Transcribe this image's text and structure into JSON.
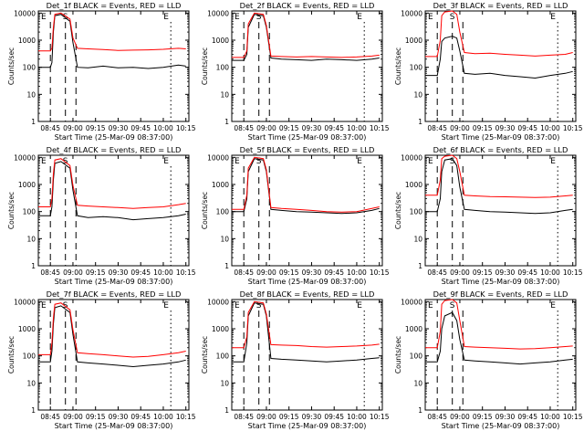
{
  "chart_data": [
    {
      "type": "line",
      "title": "Det_1f BLACK = Events, RED = LLD",
      "xlabel": "Start Time (25-Mar-09 08:37:00)",
      "ylabel": "Counts/sec",
      "yscale": "log",
      "ylim": [
        1,
        12000
      ],
      "xlim": [
        "08:37",
        "10:17"
      ],
      "x_ticks": [
        "08:45",
        "09:00",
        "09:15",
        "09:30",
        "09:45",
        "10:00",
        "10:15"
      ],
      "y_ticks": [
        "1",
        "10",
        "100",
        "1000",
        "10000"
      ],
      "marker_labels": [
        "E",
        "S",
        "E"
      ],
      "series": [
        {
          "name": "Events",
          "color": "#000000",
          "x": [
            "08:37",
            "08:45",
            "08:46",
            "08:47",
            "08:48",
            "08:52",
            "08:58",
            "09:00",
            "09:03",
            "09:10",
            "09:20",
            "09:30",
            "09:40",
            "09:50",
            "10:00",
            "10:10",
            "10:15"
          ],
          "y": [
            100,
            100,
            150,
            2000,
            8000,
            9000,
            5000,
            800,
            100,
            95,
            110,
            95,
            100,
            90,
            100,
            120,
            110
          ]
        },
        {
          "name": "LLD",
          "color": "#ff0000",
          "x": [
            "08:37",
            "08:45",
            "08:46",
            "08:47",
            "08:48",
            "08:52",
            "08:58",
            "09:00",
            "09:03",
            "09:10",
            "09:20",
            "09:30",
            "09:40",
            "09:50",
            "10:00",
            "10:10",
            "10:15"
          ],
          "y": [
            400,
            400,
            500,
            3000,
            9000,
            10000,
            6000,
            1200,
            500,
            480,
            450,
            420,
            430,
            440,
            460,
            500,
            480
          ]
        }
      ]
    },
    {
      "type": "line",
      "title": "Det_2f BLACK = Events, RED = LLD",
      "xlabel": "Start Time (25-Mar-09 08:37:00)",
      "ylabel": "Counts/sec",
      "yscale": "log",
      "ylim": [
        1,
        12000
      ],
      "xlim": [
        "08:37",
        "10:17"
      ],
      "x_ticks": [
        "08:45",
        "09:00",
        "09:15",
        "09:30",
        "09:45",
        "10:00",
        "10:15"
      ],
      "y_ticks": [
        "1",
        "10",
        "100",
        "1000",
        "10000"
      ],
      "marker_labels": [
        "E",
        "S",
        "E"
      ],
      "series": [
        {
          "name": "Events",
          "color": "#000000",
          "x": [
            "08:37",
            "08:45",
            "08:47",
            "08:48",
            "08:52",
            "08:58",
            "09:00",
            "09:03",
            "09:10",
            "09:20",
            "09:30",
            "09:40",
            "09:50",
            "10:00",
            "10:10",
            "10:15"
          ],
          "y": [
            180,
            180,
            300,
            3000,
            9000,
            8000,
            3000,
            220,
            200,
            190,
            180,
            200,
            190,
            180,
            200,
            220
          ]
        },
        {
          "name": "LLD",
          "color": "#ff0000",
          "x": [
            "08:37",
            "08:45",
            "08:47",
            "08:48",
            "08:52",
            "08:58",
            "09:00",
            "09:03",
            "09:10",
            "09:20",
            "09:30",
            "09:40",
            "09:50",
            "10:00",
            "10:10",
            "10:15"
          ],
          "y": [
            230,
            230,
            400,
            4000,
            10000,
            9000,
            3500,
            260,
            250,
            240,
            250,
            240,
            230,
            240,
            260,
            280
          ]
        }
      ]
    },
    {
      "type": "line",
      "title": "Det_3f BLACK = Events, RED = LLD",
      "xlabel": "Start Time (25-Mar-09 08:37:00)",
      "ylabel": "Counts/sec",
      "yscale": "log",
      "ylim": [
        1,
        12000
      ],
      "xlim": [
        "08:37",
        "10:17"
      ],
      "x_ticks": [
        "08:45",
        "09:00",
        "09:15",
        "09:30",
        "09:45",
        "10:00",
        "10:15"
      ],
      "y_ticks": [
        "1",
        "10",
        "100",
        "1000",
        "10000"
      ],
      "marker_labels": [
        "E",
        "S",
        "E"
      ],
      "series": [
        {
          "name": "Events",
          "color": "#000000",
          "x": [
            "08:37",
            "08:45",
            "08:47",
            "08:48",
            "08:50",
            "08:55",
            "08:58",
            "09:00",
            "09:03",
            "09:10",
            "09:20",
            "09:30",
            "09:40",
            "09:50",
            "10:00",
            "10:10",
            "10:15"
          ],
          "y": [
            50,
            50,
            200,
            900,
            1200,
            1400,
            1200,
            400,
            60,
            55,
            60,
            50,
            45,
            40,
            50,
            60,
            70
          ]
        },
        {
          "name": "LLD",
          "color": "#ff0000",
          "x": [
            "08:37",
            "08:45",
            "08:47",
            "08:48",
            "08:50",
            "08:55",
            "08:58",
            "09:00",
            "09:03",
            "09:10",
            "09:20",
            "09:30",
            "09:40",
            "09:50",
            "10:00",
            "10:10",
            "10:15"
          ],
          "y": [
            250,
            250,
            1000,
            8000,
            11000,
            12000,
            9000,
            2000,
            350,
            320,
            330,
            300,
            280,
            260,
            280,
            300,
            350
          ]
        }
      ]
    },
    {
      "type": "line",
      "title": "Det_4f BLACK = Events, RED = LLD",
      "xlabel": "Start Time (25-Mar-09 08:37:00)",
      "ylabel": "Counts/sec",
      "yscale": "log",
      "ylim": [
        1,
        12000
      ],
      "xlim": [
        "08:37",
        "10:17"
      ],
      "x_ticks": [
        "08:45",
        "09:00",
        "09:15",
        "09:30",
        "09:45",
        "10:00",
        "10:15"
      ],
      "y_ticks": [
        "1",
        "10",
        "100",
        "1000",
        "10000"
      ],
      "marker_labels": [
        "E",
        "S",
        "E"
      ],
      "series": [
        {
          "name": "Events",
          "color": "#000000",
          "x": [
            "08:37",
            "08:45",
            "08:46",
            "08:47",
            "08:48",
            "08:52",
            "08:58",
            "09:00",
            "09:03",
            "09:10",
            "09:20",
            "09:30",
            "09:40",
            "09:50",
            "10:00",
            "10:10",
            "10:15"
          ],
          "y": [
            70,
            70,
            150,
            1500,
            6000,
            7000,
            4000,
            600,
            70,
            60,
            65,
            60,
            50,
            55,
            60,
            70,
            80
          ]
        },
        {
          "name": "LLD",
          "color": "#ff0000",
          "x": [
            "08:37",
            "08:45",
            "08:46",
            "08:47",
            "08:48",
            "08:52",
            "08:58",
            "09:00",
            "09:03",
            "09:10",
            "09:20",
            "09:30",
            "09:40",
            "09:50",
            "10:00",
            "10:10",
            "10:15"
          ],
          "y": [
            150,
            150,
            300,
            2500,
            8000,
            9000,
            5000,
            900,
            170,
            160,
            150,
            140,
            130,
            140,
            150,
            180,
            200
          ]
        }
      ]
    },
    {
      "type": "line",
      "title": "Det_5f BLACK = Events, RED = LLD",
      "xlabel": "Start Time (25-Mar-09 08:37:00)",
      "ylabel": "Counts/sec",
      "yscale": "log",
      "ylim": [
        1,
        12000
      ],
      "xlim": [
        "08:37",
        "10:17"
      ],
      "x_ticks": [
        "08:45",
        "09:00",
        "09:15",
        "09:30",
        "09:45",
        "10:00",
        "10:15"
      ],
      "y_ticks": [
        "1",
        "10",
        "100",
        "1000",
        "10000"
      ],
      "marker_labels": [
        "E",
        "S",
        "E"
      ],
      "series": [
        {
          "name": "Events",
          "color": "#000000",
          "x": [
            "08:37",
            "08:45",
            "08:47",
            "08:48",
            "08:52",
            "08:58",
            "09:00",
            "09:03",
            "09:10",
            "09:20",
            "09:30",
            "09:40",
            "09:50",
            "10:00",
            "10:10",
            "10:15"
          ],
          "y": [
            100,
            100,
            300,
            3000,
            9000,
            8000,
            3000,
            120,
            110,
            100,
            95,
            90,
            85,
            90,
            110,
            130
          ]
        },
        {
          "name": "LLD",
          "color": "#ff0000",
          "x": [
            "08:37",
            "08:45",
            "08:47",
            "08:48",
            "08:52",
            "08:58",
            "09:00",
            "09:03",
            "09:10",
            "09:20",
            "09:30",
            "09:40",
            "09:50",
            "10:00",
            "10:10",
            "10:15"
          ],
          "y": [
            120,
            120,
            400,
            4000,
            10000,
            9000,
            3500,
            140,
            130,
            120,
            110,
            100,
            95,
            100,
            130,
            150
          ]
        }
      ]
    },
    {
      "type": "line",
      "title": "Det_6f BLACK = Events, RED = LLD",
      "xlabel": "Start Time (25-Mar-09 08:37:00)",
      "ylabel": "Counts/sec",
      "yscale": "log",
      "ylim": [
        1,
        12000
      ],
      "xlim": [
        "08:37",
        "10:17"
      ],
      "x_ticks": [
        "08:45",
        "09:00",
        "09:15",
        "09:30",
        "09:45",
        "10:00",
        "10:15"
      ],
      "y_ticks": [
        "1",
        "10",
        "100",
        "1000",
        "10000"
      ],
      "marker_labels": [
        "E",
        "S",
        "E"
      ],
      "series": [
        {
          "name": "Events",
          "color": "#000000",
          "x": [
            "08:37",
            "08:45",
            "08:47",
            "08:48",
            "08:50",
            "08:55",
            "08:58",
            "09:00",
            "09:03",
            "09:10",
            "09:20",
            "09:30",
            "09:40",
            "09:50",
            "10:00",
            "10:10",
            "10:15"
          ],
          "y": [
            100,
            100,
            300,
            3000,
            8000,
            9000,
            5000,
            800,
            120,
            110,
            100,
            95,
            90,
            85,
            90,
            110,
            120
          ]
        },
        {
          "name": "LLD",
          "color": "#ff0000",
          "x": [
            "08:37",
            "08:45",
            "08:47",
            "08:48",
            "08:50",
            "08:55",
            "08:58",
            "09:00",
            "09:03",
            "09:10",
            "09:20",
            "09:30",
            "09:40",
            "09:50",
            "10:00",
            "10:10",
            "10:15"
          ],
          "y": [
            400,
            400,
            1500,
            9000,
            11000,
            12000,
            9000,
            3000,
            400,
            380,
            360,
            350,
            340,
            330,
            340,
            380,
            400
          ]
        }
      ]
    },
    {
      "type": "line",
      "title": "Det_7f BLACK = Events, RED = LLD",
      "xlabel": "Start Time (25-Mar-09 08:37:00)",
      "ylabel": "Counts/sec",
      "yscale": "log",
      "ylim": [
        1,
        12000
      ],
      "xlim": [
        "08:37",
        "10:17"
      ],
      "x_ticks": [
        "08:45",
        "09:00",
        "09:15",
        "09:30",
        "09:45",
        "10:00",
        "10:15"
      ],
      "y_ticks": [
        "1",
        "10",
        "100",
        "1000",
        "10000"
      ],
      "marker_labels": [
        "E",
        "S",
        "E"
      ],
      "series": [
        {
          "name": "Events",
          "color": "#000000",
          "x": [
            "08:37",
            "08:45",
            "08:46",
            "08:47",
            "08:48",
            "08:52",
            "08:58",
            "09:00",
            "09:03",
            "09:10",
            "09:20",
            "09:30",
            "09:40",
            "09:50",
            "10:00",
            "10:10",
            "10:15"
          ],
          "y": [
            60,
            60,
            150,
            1500,
            6000,
            7000,
            4000,
            600,
            60,
            55,
            50,
            45,
            40,
            45,
            50,
            60,
            70
          ]
        },
        {
          "name": "LLD",
          "color": "#ff0000",
          "x": [
            "08:37",
            "08:45",
            "08:46",
            "08:47",
            "08:48",
            "08:52",
            "08:58",
            "09:00",
            "09:03",
            "09:10",
            "09:20",
            "09:30",
            "09:40",
            "09:50",
            "10:00",
            "10:10",
            "10:15"
          ],
          "y": [
            110,
            110,
            300,
            2500,
            8000,
            9000,
            5000,
            900,
            130,
            120,
            110,
            100,
            90,
            95,
            110,
            130,
            150
          ]
        }
      ]
    },
    {
      "type": "line",
      "title": "Det_8f BLACK = Events, RED = LLD",
      "xlabel": "Start Time (25-Mar-09 08:37:00)",
      "ylabel": "Counts/sec",
      "yscale": "log",
      "ylim": [
        1,
        12000
      ],
      "xlim": [
        "08:37",
        "10:17"
      ],
      "x_ticks": [
        "08:45",
        "09:00",
        "09:15",
        "09:30",
        "09:45",
        "10:00",
        "10:15"
      ],
      "y_ticks": [
        "1",
        "10",
        "100",
        "1000",
        "10000"
      ],
      "marker_labels": [
        "E",
        "S",
        "E"
      ],
      "series": [
        {
          "name": "Events",
          "color": "#000000",
          "x": [
            "08:37",
            "08:45",
            "08:47",
            "08:48",
            "08:52",
            "08:58",
            "09:00",
            "09:03",
            "09:10",
            "09:20",
            "09:30",
            "09:40",
            "09:50",
            "10:00",
            "10:10",
            "10:15"
          ],
          "y": [
            60,
            60,
            300,
            3000,
            9000,
            8000,
            3000,
            80,
            75,
            70,
            65,
            60,
            65,
            70,
            80,
            85
          ]
        },
        {
          "name": "LLD",
          "color": "#ff0000",
          "x": [
            "08:37",
            "08:45",
            "08:47",
            "08:48",
            "08:52",
            "08:58",
            "09:00",
            "09:03",
            "09:10",
            "09:20",
            "09:30",
            "09:40",
            "09:50",
            "10:00",
            "10:10",
            "10:15"
          ],
          "y": [
            200,
            200,
            500,
            4000,
            10000,
            9000,
            3500,
            260,
            250,
            240,
            220,
            210,
            220,
            230,
            250,
            270
          ]
        }
      ]
    },
    {
      "type": "line",
      "title": "Det_9f BLACK = Events, RED = LLD",
      "xlabel": "Start Time (25-Mar-09 08:37:00)",
      "ylabel": "Counts/sec",
      "yscale": "log",
      "ylim": [
        1,
        12000
      ],
      "xlim": [
        "08:37",
        "10:17"
      ],
      "x_ticks": [
        "08:45",
        "09:00",
        "09:15",
        "09:30",
        "09:45",
        "10:00",
        "10:15"
      ],
      "y_ticks": [
        "1",
        "10",
        "100",
        "1000",
        "10000"
      ],
      "marker_labels": [
        "E",
        "S",
        "E"
      ],
      "series": [
        {
          "name": "Events",
          "color": "#000000",
          "x": [
            "08:37",
            "08:45",
            "08:47",
            "08:48",
            "08:50",
            "08:55",
            "08:58",
            "09:00",
            "09:03",
            "09:10",
            "09:20",
            "09:30",
            "09:40",
            "09:50",
            "10:00",
            "10:10",
            "10:15"
          ],
          "y": [
            60,
            60,
            150,
            1000,
            3000,
            4000,
            2000,
            400,
            70,
            65,
            60,
            55,
            50,
            55,
            60,
            70,
            75
          ]
        },
        {
          "name": "LLD",
          "color": "#ff0000",
          "x": [
            "08:37",
            "08:45",
            "08:47",
            "08:48",
            "08:50",
            "08:55",
            "08:58",
            "09:00",
            "09:03",
            "09:10",
            "09:20",
            "09:30",
            "09:40",
            "09:50",
            "10:00",
            "10:10",
            "10:15"
          ],
          "y": [
            200,
            200,
            800,
            8000,
            11000,
            12000,
            9000,
            2000,
            220,
            210,
            200,
            190,
            180,
            185,
            200,
            220,
            230
          ]
        }
      ]
    }
  ]
}
